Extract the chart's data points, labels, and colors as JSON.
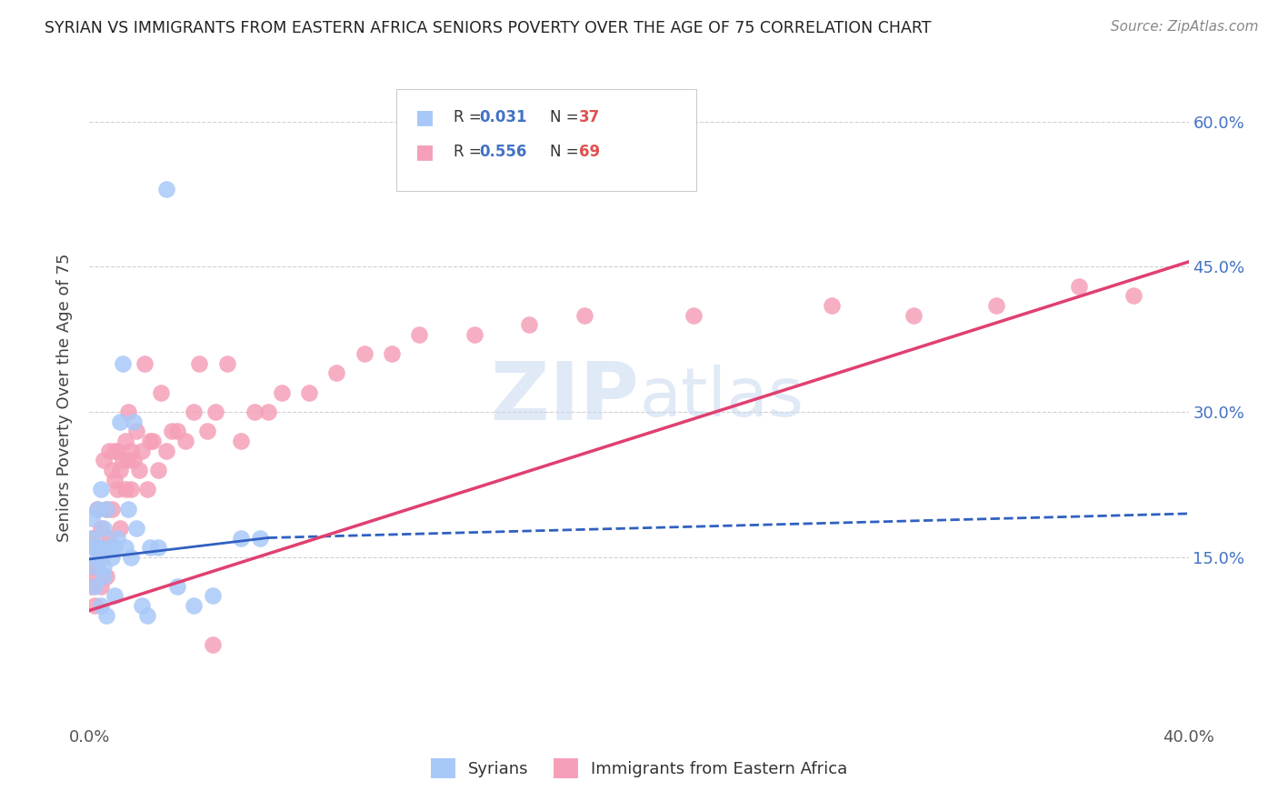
{
  "title": "SYRIAN VS IMMIGRANTS FROM EASTERN AFRICA SENIORS POVERTY OVER THE AGE OF 75 CORRELATION CHART",
  "source": "Source: ZipAtlas.com",
  "xlabel_syrians": "Syrians",
  "xlabel_eastern_africa": "Immigrants from Eastern Africa",
  "ylabel": "Seniors Poverty Over the Age of 75",
  "xmin": 0.0,
  "xmax": 0.4,
  "ymin": -0.02,
  "ymax": 0.65,
  "ytick_labels": [
    "15.0%",
    "30.0%",
    "45.0%",
    "60.0%"
  ],
  "ytick_values": [
    0.15,
    0.3,
    0.45,
    0.6
  ],
  "syrian_color": "#a8c8f8",
  "eastern_color": "#f5a0b8",
  "syrian_line_color": "#3060c0",
  "eastern_line_color": "#e04070",
  "watermark_color": "#c8d8f0",
  "background_color": "#ffffff",
  "syrians_x": [
    0.001,
    0.001,
    0.002,
    0.002,
    0.002,
    0.003,
    0.003,
    0.004,
    0.004,
    0.004,
    0.005,
    0.005,
    0.005,
    0.006,
    0.006,
    0.007,
    0.008,
    0.009,
    0.009,
    0.01,
    0.011,
    0.012,
    0.013,
    0.014,
    0.015,
    0.016,
    0.017,
    0.019,
    0.021,
    0.022,
    0.025,
    0.028,
    0.032,
    0.038,
    0.045,
    0.055,
    0.062
  ],
  "syrians_y": [
    0.17,
    0.19,
    0.14,
    0.16,
    0.12,
    0.15,
    0.2,
    0.1,
    0.16,
    0.22,
    0.14,
    0.13,
    0.18,
    0.09,
    0.2,
    0.16,
    0.15,
    0.11,
    0.16,
    0.17,
    0.29,
    0.35,
    0.16,
    0.2,
    0.15,
    0.29,
    0.18,
    0.1,
    0.09,
    0.16,
    0.16,
    0.53,
    0.12,
    0.1,
    0.11,
    0.17,
    0.17
  ],
  "eastern_x": [
    0.001,
    0.001,
    0.001,
    0.002,
    0.002,
    0.002,
    0.003,
    0.003,
    0.004,
    0.004,
    0.004,
    0.005,
    0.005,
    0.006,
    0.006,
    0.007,
    0.007,
    0.008,
    0.008,
    0.009,
    0.009,
    0.01,
    0.01,
    0.011,
    0.011,
    0.012,
    0.013,
    0.013,
    0.014,
    0.014,
    0.015,
    0.015,
    0.016,
    0.017,
    0.018,
    0.019,
    0.02,
    0.021,
    0.022,
    0.023,
    0.025,
    0.026,
    0.028,
    0.03,
    0.032,
    0.035,
    0.038,
    0.04,
    0.043,
    0.046,
    0.05,
    0.055,
    0.06,
    0.065,
    0.07,
    0.08,
    0.09,
    0.1,
    0.11,
    0.12,
    0.14,
    0.16,
    0.18,
    0.22,
    0.27,
    0.3,
    0.33,
    0.36,
    0.38,
    0.045
  ],
  "eastern_y": [
    0.14,
    0.17,
    0.12,
    0.13,
    0.16,
    0.1,
    0.14,
    0.2,
    0.18,
    0.12,
    0.15,
    0.16,
    0.25,
    0.13,
    0.2,
    0.26,
    0.17,
    0.24,
    0.2,
    0.23,
    0.26,
    0.22,
    0.26,
    0.18,
    0.24,
    0.25,
    0.27,
    0.22,
    0.25,
    0.3,
    0.26,
    0.22,
    0.25,
    0.28,
    0.24,
    0.26,
    0.35,
    0.22,
    0.27,
    0.27,
    0.24,
    0.32,
    0.26,
    0.28,
    0.28,
    0.27,
    0.3,
    0.35,
    0.28,
    0.3,
    0.35,
    0.27,
    0.3,
    0.3,
    0.32,
    0.32,
    0.34,
    0.36,
    0.36,
    0.38,
    0.38,
    0.39,
    0.4,
    0.4,
    0.41,
    0.4,
    0.41,
    0.43,
    0.42,
    0.06
  ],
  "syr_line_x0": 0.0,
  "syr_line_x_solid_end": 0.065,
  "syr_line_x1": 0.4,
  "syr_line_y0": 0.148,
  "syr_line_y_solid_end": 0.17,
  "syr_line_y1": 0.195,
  "east_line_x0": 0.0,
  "east_line_x1": 0.4,
  "east_line_y0": 0.095,
  "east_line_y1": 0.455
}
